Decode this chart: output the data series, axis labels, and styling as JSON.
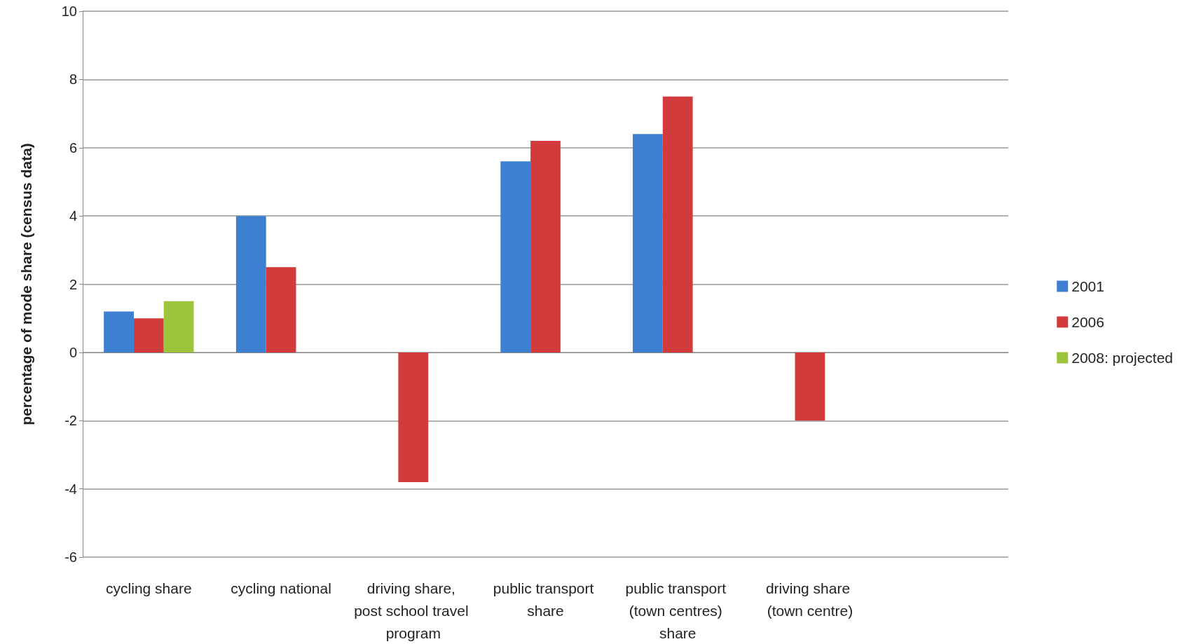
{
  "chart_data": {
    "type": "bar",
    "ylabel": "percentage of mode share (census data)",
    "categories": [
      "cycling share",
      "cycling national",
      "driving share, post school travel program",
      "public transport share",
      "public transport (town centres) share",
      "driving share (town centre)",
      null
    ],
    "series": [
      {
        "name": "2001",
        "color": "#3d7fd1",
        "values": [
          1.2,
          4.0,
          null,
          5.6,
          6.4,
          null,
          null
        ]
      },
      {
        "name": "2006",
        "color": "#d23b3b",
        "values": [
          1.0,
          2.5,
          -3.8,
          6.2,
          7.5,
          -2.0,
          null
        ]
      },
      {
        "name": "2008: projected",
        "color": "#9cc43c",
        "values": [
          1.5,
          null,
          null,
          null,
          null,
          null,
          null
        ]
      }
    ],
    "ylim": [
      -6,
      10
    ],
    "yticks": [
      -6,
      -4,
      -2,
      0,
      2,
      4,
      6,
      8,
      10
    ],
    "grid": "y",
    "legend": "right"
  }
}
